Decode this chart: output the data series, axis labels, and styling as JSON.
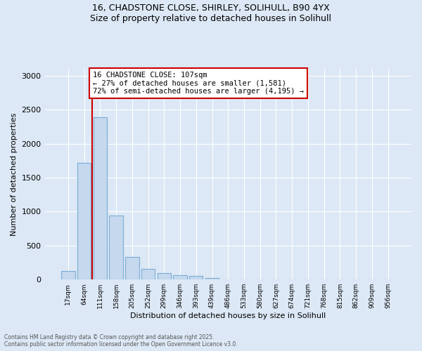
{
  "title_line1": "16, CHADSTONE CLOSE, SHIRLEY, SOLIHULL, B90 4YX",
  "title_line2": "Size of property relative to detached houses in Solihull",
  "xlabel": "Distribution of detached houses by size in Solihull",
  "ylabel": "Number of detached properties",
  "categories": [
    "17sqm",
    "64sqm",
    "111sqm",
    "158sqm",
    "205sqm",
    "252sqm",
    "299sqm",
    "346sqm",
    "393sqm",
    "439sqm",
    "486sqm",
    "533sqm",
    "580sqm",
    "627sqm",
    "674sqm",
    "721sqm",
    "768sqm",
    "815sqm",
    "862sqm",
    "909sqm",
    "956sqm"
  ],
  "values": [
    130,
    1720,
    2390,
    940,
    330,
    155,
    90,
    65,
    50,
    25,
    5,
    0,
    0,
    0,
    0,
    0,
    0,
    0,
    0,
    0,
    0
  ],
  "bar_color": "#c5d8ee",
  "bar_edge_color": "#7aadd4",
  "vline_color": "#cc0000",
  "annotation_text": "16 CHADSTONE CLOSE: 107sqm\n← 27% of detached houses are smaller (1,581)\n72% of semi-detached houses are larger (4,195) →",
  "box_facecolor": "white",
  "box_edgecolor": "#cc0000",
  "ylim": [
    0,
    3100
  ],
  "background_color": "#dce8f5",
  "plot_bg_color": "#dce8f5",
  "footer_line1": "Contains HM Land Registry data © Crown copyright and database right 2025.",
  "footer_line2": "Contains public sector information licensed under the Open Government Licence v3.0."
}
